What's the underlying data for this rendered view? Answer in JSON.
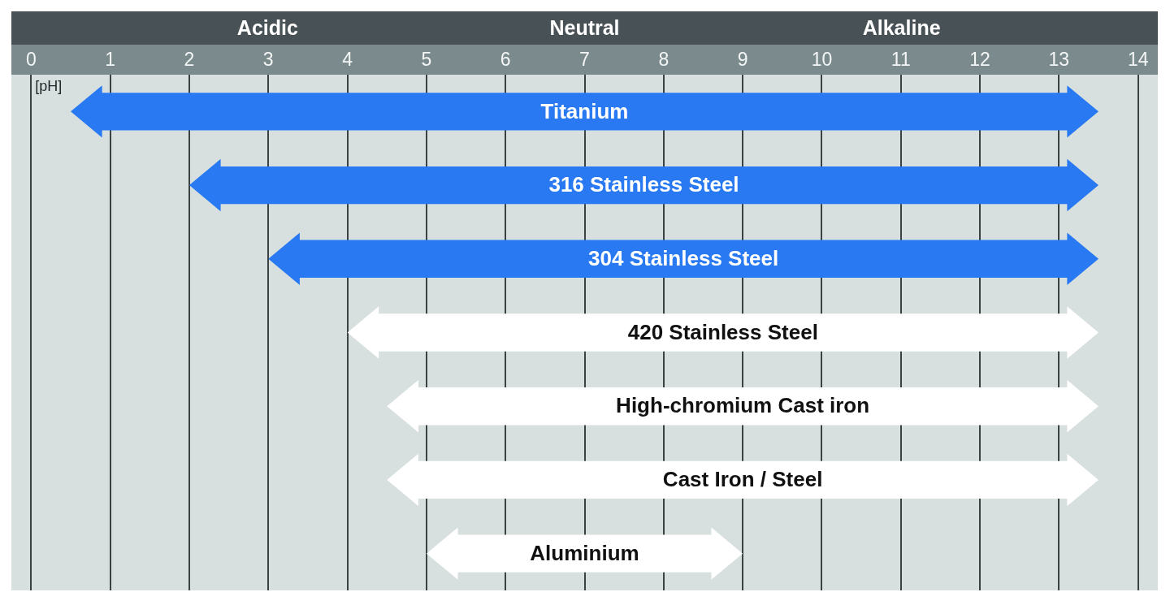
{
  "chart_data": {
    "type": "bar",
    "orientation": "horizontal",
    "categories": [
      "Titanium",
      "316 Stainless Steel",
      "304 Stainless Steel",
      "420 Stainless Steel",
      "High-chromium Cast iron",
      "Cast Iron / Steel",
      "Aluminium"
    ],
    "base": [
      0.5,
      2,
      3,
      4,
      4.5,
      4.5,
      5
    ],
    "values": [
      13,
      11.5,
      10.5,
      9.5,
      9,
      9,
      4
    ],
    "colors": [
      "#2879f2",
      "#2879f2",
      "#2879f2",
      "#ffffff",
      "#ffffff",
      "#ffffff",
      "#ffffff"
    ],
    "xlabel": "[pH]",
    "xlim": [
      -0.25,
      14.25
    ],
    "xticks": [
      0,
      1,
      2,
      3,
      4,
      5,
      6,
      7,
      8,
      9,
      10,
      11,
      12,
      13,
      14
    ],
    "annotations": [
      "Acidic",
      "Neutral",
      "Alkaline"
    ],
    "grid": "x",
    "tick_labels": "x"
  }
}
